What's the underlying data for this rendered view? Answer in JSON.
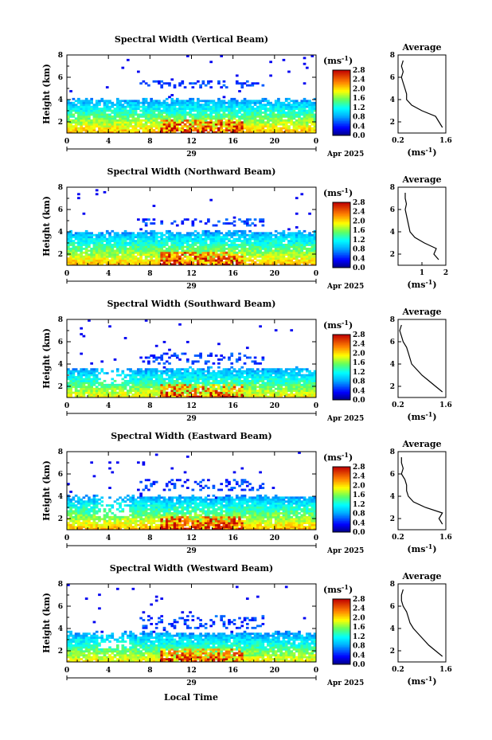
{
  "figure": {
    "xlabel_bottom": "Local Time"
  },
  "chart_data": [
    {
      "type": "heatmap",
      "title": "Spectral Width (Vertical Beam)",
      "ylabel": "Height (km)",
      "xlim": [
        0,
        24
      ],
      "ylim": [
        1,
        8
      ],
      "xticks": [
        "0",
        "4",
        "8",
        "12",
        "16",
        "20",
        "0"
      ],
      "yticks": [
        "2",
        "4",
        "6",
        "8"
      ],
      "date_day": "29",
      "date_month": "Apr 2025",
      "colorbar": {
        "label": "(ms",
        "label_exp": "-1",
        "label_close": ")",
        "ticks": [
          "0.0",
          "0.4",
          "0.8",
          "1.2",
          "1.6",
          "2.0",
          "2.4",
          "2.8"
        ],
        "range": [
          0.0,
          2.8
        ]
      },
      "cloud_top_km": 4.0,
      "sparse_layer_km": [
        5.0,
        5.8
      ],
      "avg": {
        "title": "Average",
        "xticks": [
          "0.2",
          "1.6"
        ],
        "xlim": [
          0.2,
          1.6
        ],
        "xlabel": "(ms",
        "xlabel_exp": "-1",
        "xlabel_close": ")",
        "heights": [
          1.5,
          2.0,
          2.5,
          3.0,
          3.5,
          4.0,
          4.5,
          5.0,
          5.5,
          6.0,
          6.5,
          7.0,
          7.5
        ],
        "values": [
          1.5,
          1.4,
          1.3,
          0.9,
          0.6,
          0.45,
          0.45,
          0.4,
          0.35,
          0.3,
          0.35,
          0.3,
          0.35
        ]
      }
    },
    {
      "type": "heatmap",
      "title": "Spectral Width (Northward Beam)",
      "ylabel": "Height (km)",
      "xlim": [
        0,
        24
      ],
      "ylim": [
        1,
        8
      ],
      "xticks": [
        "0",
        "4",
        "8",
        "12",
        "16",
        "20",
        "0"
      ],
      "yticks": [
        "2",
        "4",
        "6",
        "8"
      ],
      "date_day": "29",
      "date_month": "Apr 2025",
      "colorbar": {
        "label": "(ms",
        "label_exp": "-1",
        "label_close": ")",
        "ticks": [
          "0.0",
          "0.4",
          "0.8",
          "1.2",
          "1.6",
          "2.0",
          "2.4",
          "2.8"
        ],
        "range": [
          0.0,
          2.8
        ]
      },
      "cloud_top_km": 4.0,
      "sparse_layer_km": [
        4.5,
        5.2
      ],
      "avg": {
        "title": "Average",
        "xticks": [
          "1",
          "2"
        ],
        "xlim": [
          0,
          2.0
        ],
        "xlabel": "(ms",
        "xlabel_exp": "-1",
        "xlabel_close": ")",
        "heights": [
          1.5,
          2.0,
          2.5,
          3.0,
          3.5,
          4.0,
          4.5,
          5.0,
          5.5,
          6.0,
          6.5,
          7.0,
          7.5
        ],
        "values": [
          1.7,
          1.5,
          1.6,
          1.1,
          0.7,
          0.5,
          0.45,
          0.4,
          0.35,
          0.3,
          0.35,
          0.3,
          0.3
        ]
      }
    },
    {
      "type": "heatmap",
      "title": "Spectral Width (Southward Beam)",
      "ylabel": "Height (km)",
      "xlim": [
        0,
        24
      ],
      "ylim": [
        1,
        8
      ],
      "xticks": [
        "0",
        "4",
        "8",
        "12",
        "16",
        "20",
        "0"
      ],
      "yticks": [
        "2",
        "4",
        "6",
        "8"
      ],
      "date_day": "29",
      "date_month": "Apr 2025",
      "colorbar": {
        "label": "(ms",
        "label_exp": "-1",
        "label_close": ")",
        "ticks": [
          "0.0",
          "0.4",
          "0.8",
          "1.2",
          "1.6",
          "2.0",
          "2.4",
          "2.8"
        ],
        "range": [
          0.0,
          2.8
        ]
      },
      "cloud_top_km": 3.6,
      "sparse_layer_km": [
        4.0,
        5.0
      ],
      "avg": {
        "title": "Average",
        "xticks": [
          "0.2",
          "1.6"
        ],
        "xlim": [
          0.2,
          1.6
        ],
        "xlabel": "(ms",
        "xlabel_exp": "-1",
        "xlabel_close": ")",
        "heights": [
          1.5,
          2.0,
          2.5,
          3.0,
          3.5,
          4.0,
          4.5,
          5.0,
          5.5,
          6.0,
          6.5,
          7.0,
          7.5
        ],
        "values": [
          1.5,
          1.3,
          1.1,
          0.9,
          0.75,
          0.6,
          0.55,
          0.5,
          0.45,
          0.35,
          0.3,
          0.25,
          0.3
        ]
      }
    },
    {
      "type": "heatmap",
      "title": "Spectral Width (Eastward Beam)",
      "ylabel": "Height (km)",
      "xlim": [
        0,
        24
      ],
      "ylim": [
        1,
        8
      ],
      "xticks": [
        "0",
        "4",
        "8",
        "12",
        "16",
        "20",
        "0"
      ],
      "yticks": [
        "2",
        "4",
        "6",
        "8"
      ],
      "date_day": "29",
      "date_month": "Apr 2025",
      "colorbar": {
        "label": "(ms",
        "label_exp": "-1",
        "label_close": ")",
        "ticks": [
          "0.0",
          "0.4",
          "0.8",
          "1.2",
          "1.6",
          "2.0",
          "2.4",
          "2.8"
        ],
        "range": [
          0.0,
          2.8
        ]
      },
      "cloud_top_km": 4.0,
      "sparse_layer_km": [
        4.5,
        5.5
      ],
      "avg": {
        "title": "Average",
        "xticks": [
          "0.2",
          "1.6"
        ],
        "xlim": [
          0.2,
          1.6
        ],
        "xlabel": "(ms",
        "xlabel_exp": "-1",
        "xlabel_close": ")",
        "heights": [
          1.5,
          2.0,
          2.5,
          3.0,
          3.5,
          4.0,
          4.5,
          5.0,
          5.5,
          6.0,
          6.5,
          7.0,
          7.5
        ],
        "values": [
          1.5,
          1.4,
          1.5,
          1.0,
          0.65,
          0.5,
          0.45,
          0.45,
          0.4,
          0.3,
          0.35,
          0.3,
          0.3
        ]
      }
    },
    {
      "type": "heatmap",
      "title": "Spectral Width (Westward Beam)",
      "ylabel": "Height (km)",
      "xlim": [
        0,
        24
      ],
      "ylim": [
        1,
        8
      ],
      "xticks": [
        "0",
        "4",
        "8",
        "12",
        "16",
        "20",
        "0"
      ],
      "yticks": [
        "2",
        "4",
        "6",
        "8"
      ],
      "date_day": "29",
      "date_month": "Apr 2025",
      "colorbar": {
        "label": "(ms",
        "label_exp": "-1",
        "label_close": ")",
        "ticks": [
          "0.0",
          "0.4",
          "0.8",
          "1.2",
          "1.6",
          "2.0",
          "2.4",
          "2.8"
        ],
        "range": [
          0.0,
          2.8
        ]
      },
      "cloud_top_km": 3.6,
      "sparse_layer_km": [
        4.0,
        5.2
      ],
      "avg": {
        "title": "Average",
        "xticks": [
          "0.2",
          "1.6"
        ],
        "xlim": [
          0.2,
          1.6
        ],
        "xlabel": "(ms",
        "xlabel_exp": "-1",
        "xlabel_close": ")",
        "heights": [
          1.5,
          2.0,
          2.5,
          3.0,
          3.5,
          4.0,
          4.5,
          5.0,
          5.5,
          6.0,
          6.5,
          7.0,
          7.5
        ],
        "values": [
          1.5,
          1.3,
          1.1,
          0.95,
          0.8,
          0.65,
          0.55,
          0.5,
          0.45,
          0.35,
          0.3,
          0.3,
          0.35
        ]
      }
    }
  ]
}
